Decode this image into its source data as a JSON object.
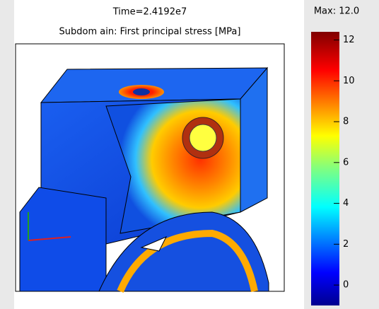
{
  "plot": {
    "title": "Time=2.4192e7",
    "subtitle": "Subdom ain: First principal stress [MPa]",
    "max_label": "Max: 12.0",
    "colorbar": {
      "lim": [
        -1,
        12.4
      ],
      "ticks": [
        0,
        2,
        4,
        6,
        8,
        10,
        12
      ]
    }
  }
}
